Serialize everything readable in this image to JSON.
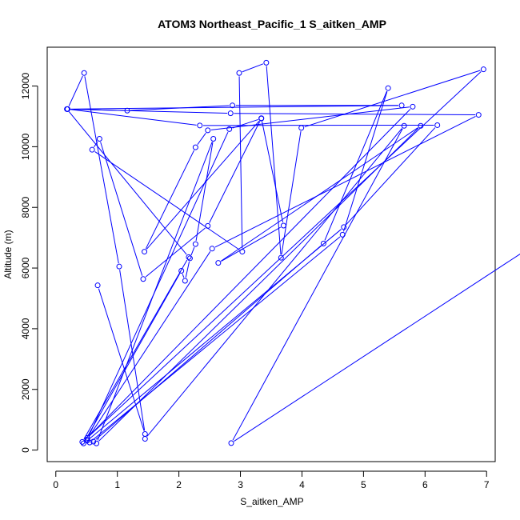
{
  "chart_data": {
    "type": "line",
    "title": "ATOM3 Northeast_Pacific_1 S_aitken_AMP",
    "xlabel": "S_aitken_AMP",
    "ylabel": "Altitude (m)",
    "xlim": [
      -0.14,
      7.14
    ],
    "ylim": [
      -380,
      13280
    ],
    "xticks": [
      0,
      1,
      2,
      3,
      4,
      5,
      6,
      7
    ],
    "yticks": [
      0,
      2000,
      4000,
      6000,
      8000,
      10000,
      12000
    ],
    "grid": false,
    "legend": "none",
    "color": "#0000ff",
    "marker": "open-circle",
    "series": [
      {
        "x": [
          0.68,
          1.45,
          1.03,
          0.46,
          0.19,
          1.16,
          2.87,
          5.62,
          0.19,
          2.34,
          6.2,
          4.68,
          0.51,
          0.61,
          4.35,
          5.4,
          4.66,
          0.55,
          0.43,
          2.16,
          0.18,
          2.84,
          6.87,
          2.54,
          0.51,
          2.82,
          3.34,
          1.44,
          2.27,
          2.47,
          5.8,
          0.51,
          6.95,
          3.99,
          3.66,
          3.42,
          2.98,
          3.03,
          0.59,
          0.71,
          1.42,
          2.47,
          3.34,
          3.7,
          2.64,
          5.93,
          0.66,
          2.56,
          2.27,
          2.18,
          2.1,
          2.04,
          0.45
        ],
        "y": [
          5430,
          530,
          6050,
          12430,
          11240,
          11190,
          11360,
          11360,
          11240,
          10700,
          10710,
          7350,
          310,
          280,
          6810,
          11930,
          7100,
          250,
          270,
          6360,
          11240,
          11100,
          11050,
          6640,
          350,
          10580,
          10930,
          6540,
          9980,
          10540,
          11320,
          400,
          12550,
          10620,
          6340,
          12770,
          12430,
          6540,
          9900,
          10260,
          5640,
          7390,
          10940,
          7400,
          6170,
          10690,
          220,
          10260,
          6790,
          6320,
          5580,
          5910,
          220
        ]
      },
      {
        "x": [
          1.45,
          5.66,
          2.85,
          10.85
        ],
        "y": [
          370,
          10690,
          230,
          10850
        ]
      }
    ]
  }
}
